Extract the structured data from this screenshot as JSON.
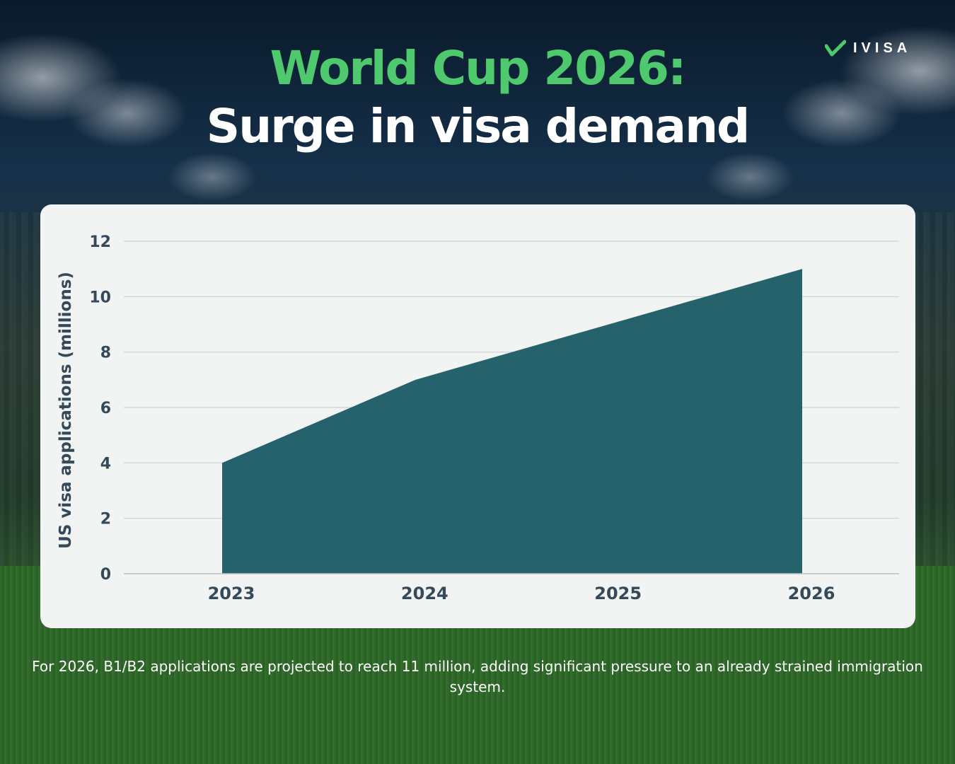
{
  "header": {
    "title_line1": "World Cup 2026:",
    "title_line2": "Surge in visa demand"
  },
  "brand": {
    "name": "IVISA",
    "icon": "checkmark-logo-icon",
    "color": "#4ec96d"
  },
  "chart_data": {
    "type": "area",
    "categories": [
      "2023",
      "2024",
      "2025",
      "2026"
    ],
    "values": [
      4,
      7,
      9,
      11
    ],
    "ylabel": "US visa applications (millions)",
    "xlabel": "",
    "ylim": [
      0,
      12
    ],
    "yticks": [
      0,
      2,
      4,
      6,
      8,
      10,
      12
    ],
    "grid": true,
    "fill_color": "#25626b"
  },
  "footnote": "For 2026, B1/B2 applications are projected to reach 11 million, adding significant pressure to an already strained immigration system."
}
